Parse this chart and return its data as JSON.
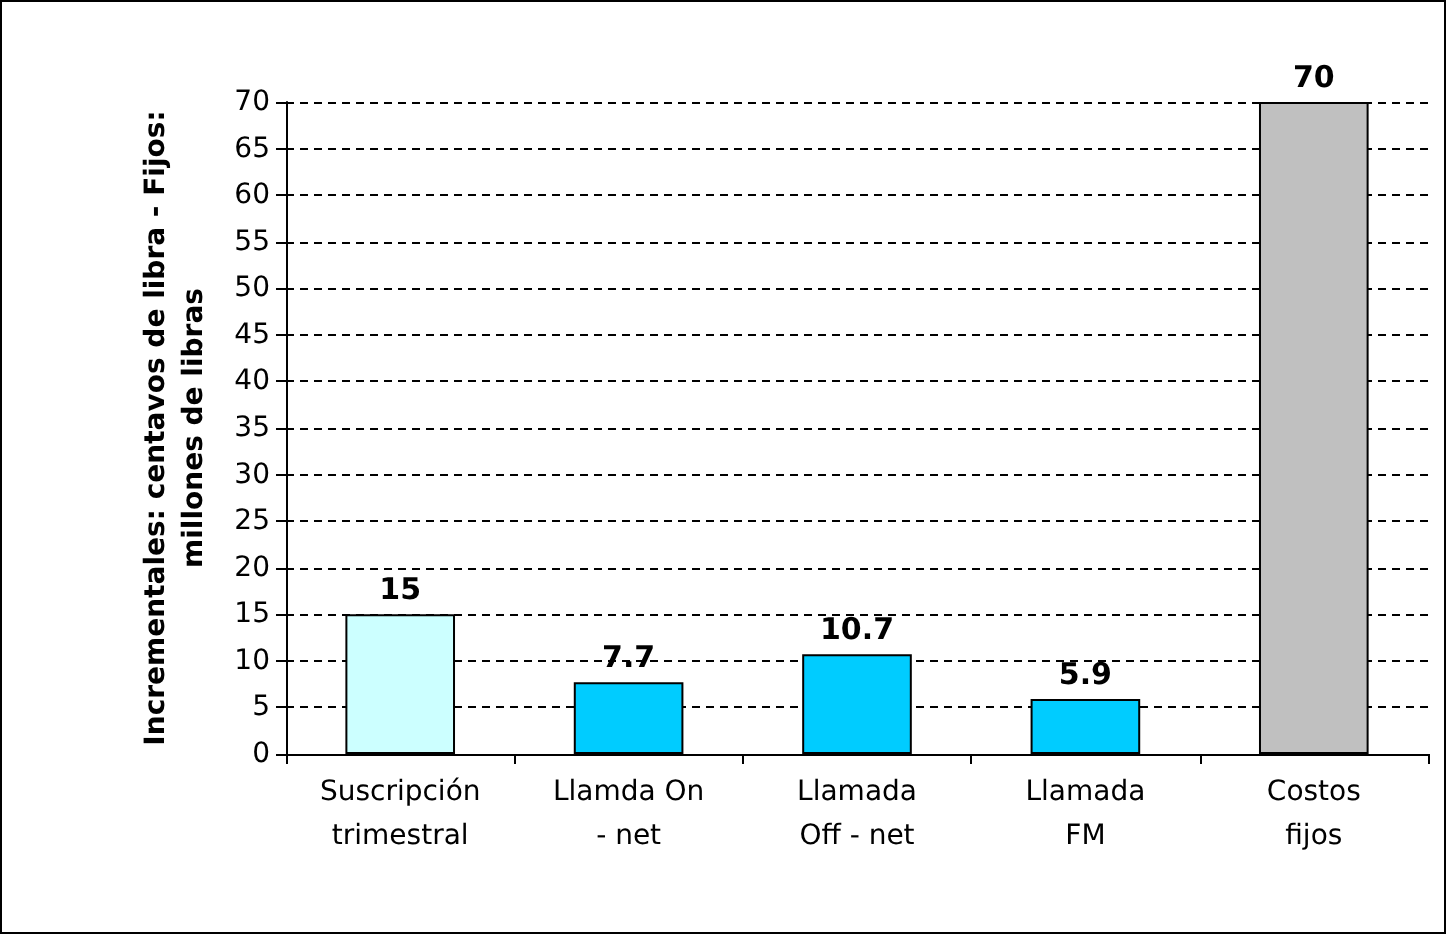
{
  "chart_data": {
    "type": "bar",
    "ylabel": "Incrementales: centavos de libra - Fijos:\nmillones de libras",
    "categories": [
      "Suscripción\ntrimestral",
      "Llamda On\n- net",
      "Llamada\nOff - net",
      "Llamada\nFM",
      "Costos\nfijos"
    ],
    "values": [
      15,
      7.7,
      10.7,
      5.9,
      70
    ],
    "colors": [
      "#ccffff",
      "#00ccff",
      "#00ccff",
      "#00ccff",
      "#c0c0c0"
    ],
    "ylim": [
      0,
      70
    ],
    "yticks": [
      0,
      5,
      10,
      15,
      20,
      25,
      30,
      35,
      40,
      45,
      50,
      55,
      60,
      65,
      70
    ],
    "grid": "y",
    "data_labels": true
  }
}
